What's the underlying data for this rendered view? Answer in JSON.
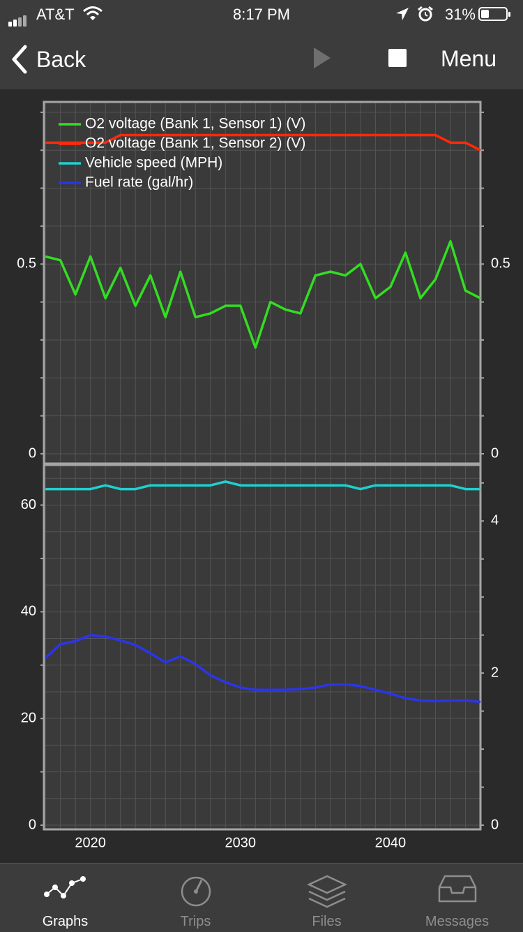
{
  "status_bar": {
    "carrier": "AT&T",
    "time": "8:17 PM",
    "battery": "31%",
    "battery_level": 0.31,
    "icons": [
      "signal-icon",
      "wifi-icon",
      "location-icon",
      "alarm-icon",
      "battery-icon"
    ]
  },
  "nav": {
    "back_label": "Back",
    "menu_label": "Menu",
    "icons": [
      "chevron-left-icon",
      "play-icon",
      "stop-icon"
    ]
  },
  "chart_data": [
    {
      "type": "line",
      "panel": "top",
      "x": [
        2017,
        2018,
        2019,
        2020,
        2021,
        2022,
        2023,
        2024,
        2025,
        2026,
        2027,
        2028,
        2029,
        2030,
        2031,
        2032,
        2033,
        2034,
        2035,
        2036,
        2037,
        2038,
        2039,
        2040,
        2041,
        2042,
        2043,
        2044,
        2045,
        2046
      ],
      "y_left_ticks": [
        "0",
        "0.5"
      ],
      "y_right_ticks": [
        "0",
        "0.5"
      ],
      "ylim": [
        0,
        0.92
      ],
      "grid": true,
      "legend_position": "top-left",
      "series": [
        {
          "name": "O2 voltage (Bank 1, Sensor 1) (V)",
          "color": "#33dd22",
          "values": [
            0.52,
            0.51,
            0.42,
            0.52,
            0.41,
            0.49,
            0.39,
            0.47,
            0.36,
            0.48,
            0.36,
            0.37,
            0.39,
            0.39,
            0.28,
            0.4,
            0.38,
            0.37,
            0.47,
            0.48,
            0.47,
            0.5,
            0.41,
            0.44,
            0.53,
            0.41,
            0.46,
            0.56,
            0.43,
            0.41
          ]
        },
        {
          "name": "O2 voltage (Bank 1, Sensor 2) (V)",
          "color": "#ff2a0a",
          "values": [
            0.82,
            0.82,
            0.82,
            0.82,
            0.82,
            0.84,
            0.84,
            0.84,
            0.84,
            0.84,
            0.84,
            0.84,
            0.84,
            0.84,
            0.84,
            0.84,
            0.84,
            0.84,
            0.84,
            0.84,
            0.84,
            0.84,
            0.84,
            0.84,
            0.84,
            0.84,
            0.84,
            0.82,
            0.82,
            0.8
          ]
        }
      ]
    },
    {
      "type": "line",
      "panel": "bottom",
      "x": [
        2017,
        2018,
        2019,
        2020,
        2021,
        2022,
        2023,
        2024,
        2025,
        2026,
        2027,
        2028,
        2029,
        2030,
        2031,
        2032,
        2033,
        2034,
        2035,
        2036,
        2037,
        2038,
        2039,
        2040,
        2041,
        2042,
        2043,
        2044,
        2045,
        2046
      ],
      "y_left_ticks": [
        "0",
        "20",
        "40",
        "60"
      ],
      "y_left_lim": [
        0,
        67
      ],
      "y_right_ticks": [
        "0",
        "2",
        "4"
      ],
      "y_right_lim": [
        0,
        4.7
      ],
      "x_tick_labels": [
        "2020",
        "2030",
        "2040"
      ],
      "grid": true,
      "series": [
        {
          "name": "Vehicle speed (MPH)",
          "axis": "left",
          "color": "#1fd0d0",
          "values": [
            63,
            63,
            63,
            63,
            63.7,
            63,
            63,
            63.7,
            63.7,
            63.7,
            63.7,
            63.7,
            64.4,
            63.7,
            63.7,
            63.7,
            63.7,
            63.7,
            63.7,
            63.7,
            63.7,
            63,
            63.7,
            63.7,
            63.7,
            63.7,
            63.7,
            63.7,
            63,
            63
          ]
        },
        {
          "name": "Fuel rate (gal/hr)",
          "axis": "right",
          "color": "#2b35e8",
          "values": [
            2.2,
            2.38,
            2.42,
            2.5,
            2.48,
            2.43,
            2.37,
            2.26,
            2.14,
            2.22,
            2.12,
            1.97,
            1.88,
            1.81,
            1.78,
            1.78,
            1.78,
            1.79,
            1.81,
            1.85,
            1.85,
            1.83,
            1.78,
            1.73,
            1.67,
            1.64,
            1.63,
            1.64,
            1.64,
            1.62
          ]
        }
      ]
    }
  ],
  "tabbar": {
    "tabs": [
      {
        "label": "Graphs",
        "icon": "graphs-icon",
        "active": true
      },
      {
        "label": "Trips",
        "icon": "trips-icon",
        "active": false
      },
      {
        "label": "Files",
        "icon": "files-icon",
        "active": false
      },
      {
        "label": "Messages",
        "icon": "messages-icon",
        "active": false
      }
    ]
  }
}
